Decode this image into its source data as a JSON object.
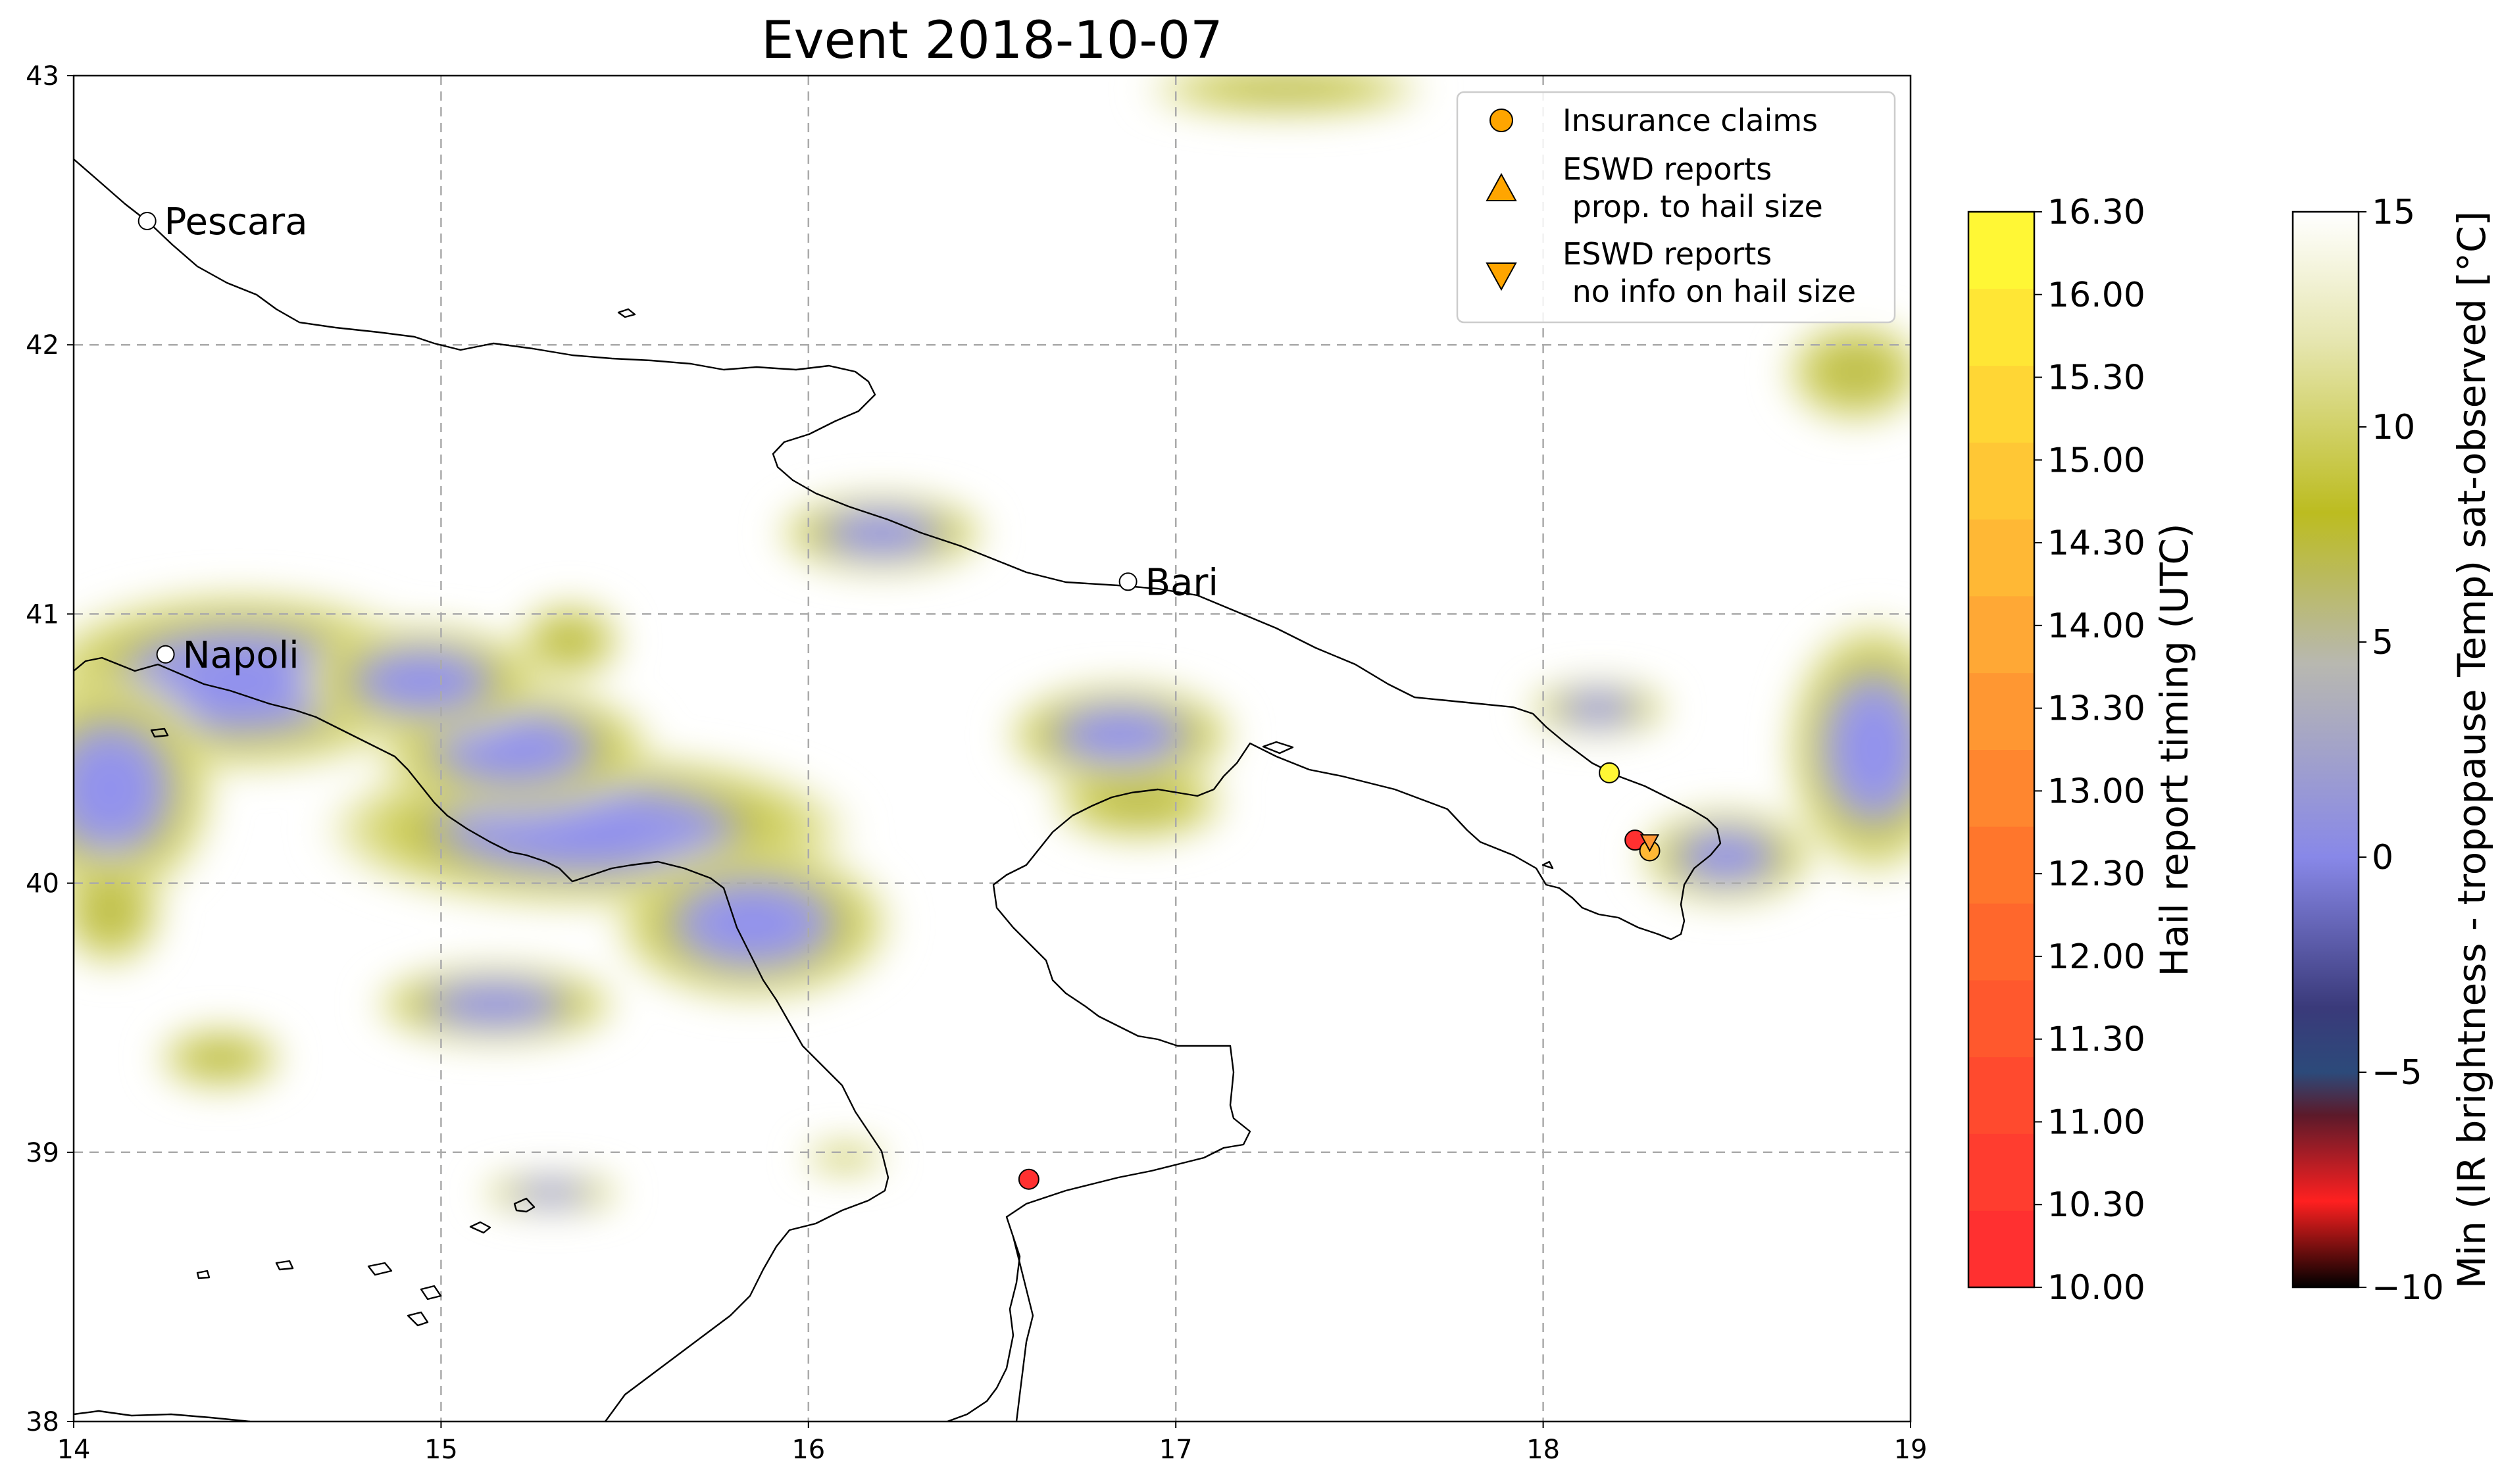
{
  "map": {
    "title": "Event 2018-10-07",
    "lon_range": [
      14,
      19
    ],
    "lat_range": [
      38,
      43
    ],
    "lon_ticks": [
      "14",
      "15",
      "16",
      "17",
      "18",
      "19"
    ],
    "lat_ticks": [
      "38",
      "39",
      "40",
      "41",
      "42",
      "43"
    ],
    "gridlines": true,
    "cities": [
      {
        "name": "Pescara",
        "lon": 14.2,
        "lat": 42.46
      },
      {
        "name": "Napoli",
        "lon": 14.25,
        "lat": 40.85
      },
      {
        "name": "Bari",
        "lon": 16.87,
        "lat": 41.12
      }
    ],
    "hail_reports": [
      {
        "type": "insurance-claim",
        "lon": 18.18,
        "lat": 40.41,
        "time": 16.0
      },
      {
        "type": "insurance-claim",
        "lon": 18.25,
        "lat": 40.16,
        "time": 10.3
      },
      {
        "type": "insurance-claim",
        "lon": 18.29,
        "lat": 40.12,
        "time": 14.3
      },
      {
        "type": "eswd-no-size",
        "lon": 18.29,
        "lat": 40.15,
        "time": 13.3
      },
      {
        "type": "insurance-claim",
        "lon": 16.6,
        "lat": 38.9,
        "time": 10.3
      }
    ]
  },
  "legend": {
    "position": "top-right",
    "items": [
      {
        "label_lines": [
          "Insurance claims"
        ],
        "marker": "circle",
        "color": "#ffa500"
      },
      {
        "label_lines": [
          "ESWD reports",
          " prop. to hail size"
        ],
        "marker": "triangle-up",
        "color": "#ffa500"
      },
      {
        "label_lines": [
          "ESWD reports",
          " no info on hail size"
        ],
        "marker": "triangle-down",
        "color": "#ffa500"
      }
    ]
  },
  "colorbar_timing": {
    "label": "Hail report timing (UTC)",
    "ticks": [
      "10.00",
      "10.30",
      "11.00",
      "11.30",
      "12.00",
      "12.30",
      "13.00",
      "13.30",
      "14.00",
      "14.30",
      "15.00",
      "15.30",
      "16.00",
      "16.30"
    ],
    "colors": [
      "#ff3030",
      "#ff3d2f",
      "#ff4a2e",
      "#ff582d",
      "#ff672c",
      "#ff762c",
      "#ff862f",
      "#ff9732",
      "#ffa835",
      "#ffb835",
      "#ffc735",
      "#ffd635",
      "#ffe635",
      "#fff735"
    ]
  },
  "colorbar_temp": {
    "label": "Min (IR brightness - tropopause Temp) sat-observed [°C]",
    "ticks": [
      "−10",
      "−5",
      "0",
      "5",
      "10",
      "15"
    ],
    "range": [
      -10,
      15
    ]
  },
  "chart_data": {
    "type": "heatmap",
    "title": "Event 2018-10-07",
    "xlabel": "",
    "ylabel": "",
    "xlim": [
      14,
      19
    ],
    "ylim": [
      38,
      43
    ],
    "colorbar_ranges": {
      "timing": [
        10.0,
        16.3
      ],
      "temperature": [
        -10,
        15
      ]
    },
    "cloud_cells": [
      {
        "lon": 14.45,
        "lat": 40.75,
        "rx": 0.6,
        "ry": 0.35,
        "min_value": 2
      },
      {
        "lon": 14.1,
        "lat": 40.35,
        "rx": 0.3,
        "ry": 0.45,
        "min_value": 3
      },
      {
        "lon": 15.4,
        "lat": 40.2,
        "rx": 0.75,
        "ry": 0.3,
        "min_value": 0
      },
      {
        "lon": 15.2,
        "lat": 40.5,
        "rx": 0.4,
        "ry": 0.25,
        "min_value": 1
      },
      {
        "lon": 14.95,
        "lat": 40.75,
        "rx": 0.35,
        "ry": 0.22,
        "min_value": 3
      },
      {
        "lon": 15.85,
        "lat": 39.85,
        "rx": 0.4,
        "ry": 0.3,
        "min_value": 2
      },
      {
        "lon": 15.15,
        "lat": 39.55,
        "rx": 0.35,
        "ry": 0.15,
        "min_value": 4
      },
      {
        "lon": 14.4,
        "lat": 39.35,
        "rx": 0.18,
        "ry": 0.12,
        "min_value": 8
      },
      {
        "lon": 14.1,
        "lat": 39.9,
        "rx": 0.15,
        "ry": 0.22,
        "min_value": 5
      },
      {
        "lon": 15.3,
        "lat": 38.85,
        "rx": 0.2,
        "ry": 0.07,
        "min_value": 4
      },
      {
        "lon": 15.35,
        "lat": 40.9,
        "rx": 0.15,
        "ry": 0.15,
        "min_value": 7
      },
      {
        "lon": 16.2,
        "lat": 41.3,
        "rx": 0.3,
        "ry": 0.15,
        "min_value": 2
      },
      {
        "lon": 16.85,
        "lat": 40.55,
        "rx": 0.33,
        "ry": 0.2,
        "min_value": 2
      },
      {
        "lon": 16.9,
        "lat": 40.3,
        "rx": 0.25,
        "ry": 0.15,
        "min_value": 6
      },
      {
        "lon": 18.15,
        "lat": 40.65,
        "rx": 0.2,
        "ry": 0.1,
        "min_value": 3
      },
      {
        "lon": 18.5,
        "lat": 40.1,
        "rx": 0.25,
        "ry": 0.18,
        "min_value": 2
      },
      {
        "lon": 18.9,
        "lat": 40.5,
        "rx": 0.25,
        "ry": 0.5,
        "min_value": 1
      },
      {
        "lon": 18.85,
        "lat": 41.9,
        "rx": 0.2,
        "ry": 0.2,
        "min_value": 8
      },
      {
        "lon": 16.1,
        "lat": 38.98,
        "rx": 0.12,
        "ry": 0.05,
        "min_value": 10
      },
      {
        "lon": 17.3,
        "lat": 42.95,
        "rx": 0.4,
        "ry": 0.1,
        "min_value": 9
      }
    ]
  }
}
